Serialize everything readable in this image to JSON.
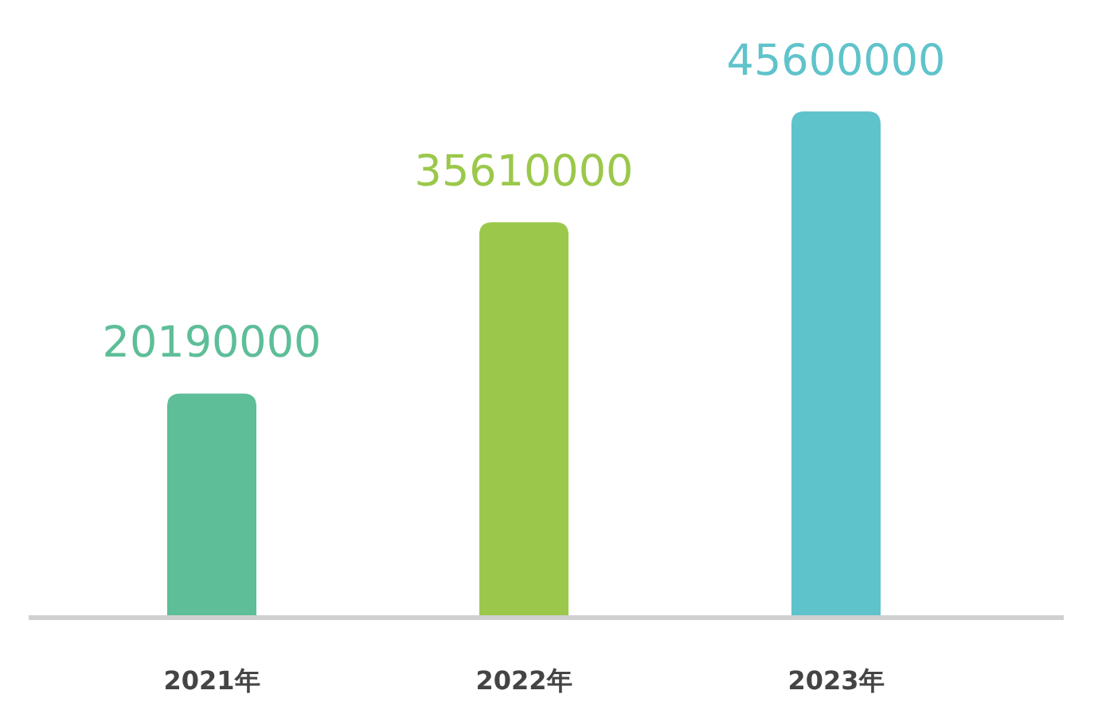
{
  "chart_data": {
    "type": "bar",
    "categories": [
      "2021年",
      "2022年",
      "2023年"
    ],
    "values": [
      20190000,
      35610000,
      45600000
    ],
    "colors": [
      "#5dbe98",
      "#9bc84b",
      "#5fc3cb"
    ],
    "data_labels": true
  }
}
